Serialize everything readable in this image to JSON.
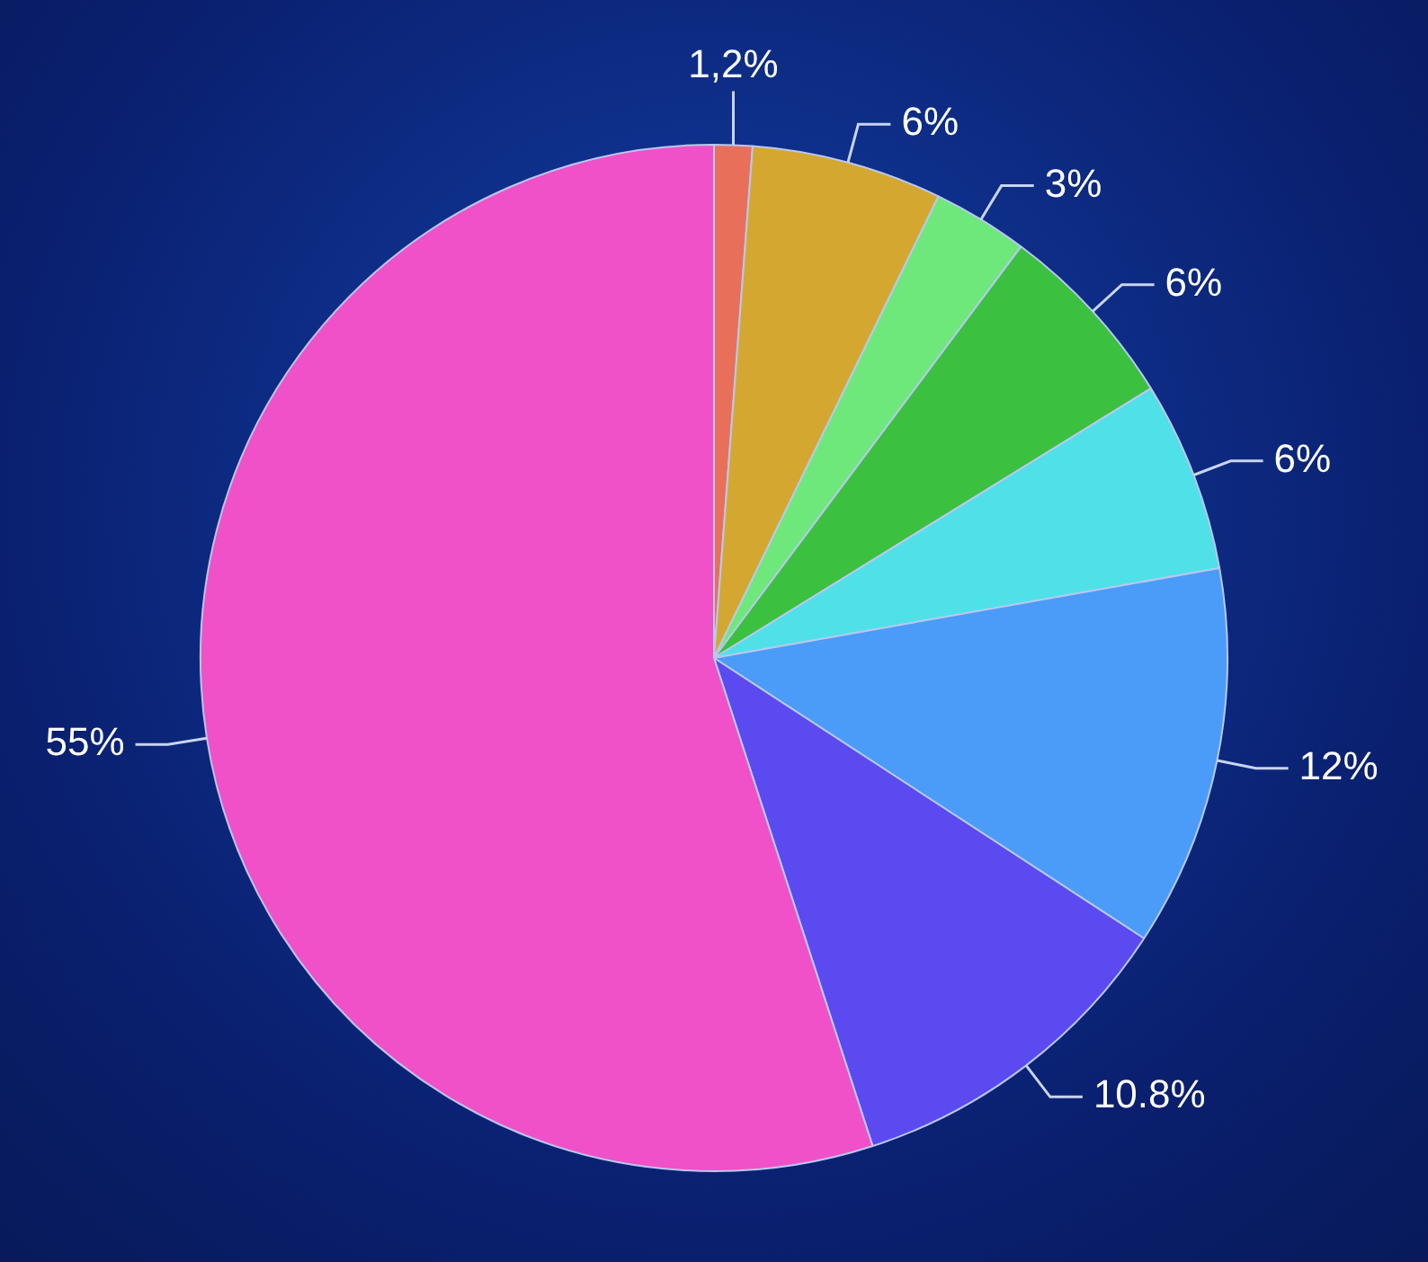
{
  "chart_data": {
    "type": "pie",
    "categories": [
      null,
      null,
      null,
      null,
      null,
      null,
      null,
      null
    ],
    "values": [
      1.2,
      6,
      3,
      6,
      6,
      12,
      10.8,
      55
    ],
    "colors": [
      "#e8705a",
      "#d4a830",
      "#6ee87a",
      "#3cc040",
      "#50e0e8",
      "#4a9cf8",
      "#5a4af0",
      "#f050c8"
    ],
    "value_labels": [
      "1,2%",
      "6%",
      "3%",
      "6%",
      "6%",
      "12%",
      "10.8%",
      "55%"
    ],
    "legend": false
  }
}
